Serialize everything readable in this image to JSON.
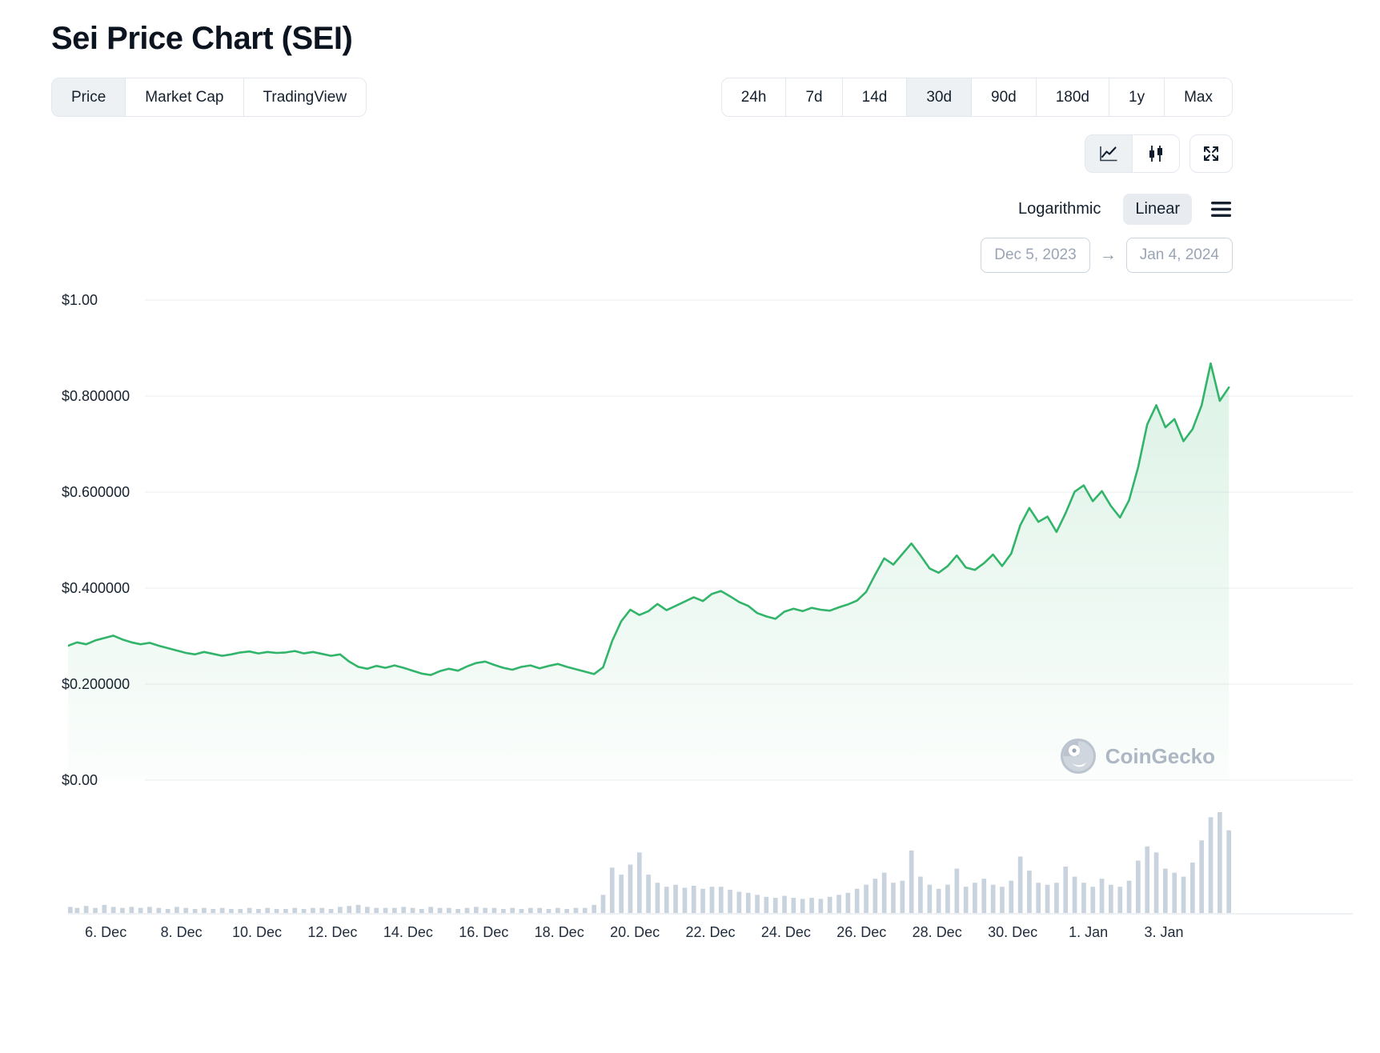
{
  "header": {
    "title": "Sei Price Chart (SEI)"
  },
  "toolbar": {
    "tabs": [
      {
        "label": "Price",
        "selected": true
      },
      {
        "label": "Market Cap",
        "selected": false
      },
      {
        "label": "TradingView",
        "selected": false
      }
    ],
    "ranges": [
      {
        "label": "24h",
        "selected": false
      },
      {
        "label": "7d",
        "selected": false
      },
      {
        "label": "14d",
        "selected": false
      },
      {
        "label": "30d",
        "selected": true
      },
      {
        "label": "90d",
        "selected": false
      },
      {
        "label": "180d",
        "selected": false
      },
      {
        "label": "1y",
        "selected": false
      },
      {
        "label": "Max",
        "selected": false
      }
    ]
  },
  "chart_controls": {
    "type_buttons": [
      {
        "name": "line-chart",
        "selected": true
      },
      {
        "name": "candlestick",
        "selected": false
      },
      {
        "name": "fullscreen",
        "selected": false
      }
    ],
    "scale_options": [
      {
        "label": "Logarithmic",
        "selected": false
      },
      {
        "label": "Linear",
        "selected": true
      }
    ],
    "date_range": {
      "start": "Dec 5, 2023",
      "arrow": "→",
      "end": "Jan 4, 2024"
    }
  },
  "watermark": {
    "label": "CoinGecko"
  },
  "chart_data": {
    "type": "area",
    "title": "Sei Price Chart (SEI)",
    "xlabel": "",
    "ylabel": "",
    "currency": "USD",
    "date_start": "Dec 5, 2023",
    "date_end": "Jan 4, 2024",
    "ylim": [
      0,
      1.0
    ],
    "grid": true,
    "legend_position": "none",
    "line_color": "#32b46a",
    "area_fill_top": "rgba(50,180,106,0.17)",
    "area_fill_bottom": "rgba(50,180,106,0.02)",
    "volume_color": "#c9d3de",
    "grid_color": "#e9edf1",
    "sample_interval_days": 0.24,
    "x_total_span_days": 34,
    "yticks": [
      {
        "label": "$1.00",
        "value": 1.0
      },
      {
        "label": "$0.800000",
        "value": 0.8
      },
      {
        "label": "$0.600000",
        "value": 0.6
      },
      {
        "label": "$0.400000",
        "value": 0.4
      },
      {
        "label": "$0.200000",
        "value": 0.2
      },
      {
        "label": "$0.00",
        "value": 0.0
      }
    ],
    "xticks": [
      {
        "label": "6. Dec",
        "day": 1
      },
      {
        "label": "8. Dec",
        "day": 3
      },
      {
        "label": "10. Dec",
        "day": 5
      },
      {
        "label": "12. Dec",
        "day": 7
      },
      {
        "label": "14. Dec",
        "day": 9
      },
      {
        "label": "16. Dec",
        "day": 11
      },
      {
        "label": "18. Dec",
        "day": 13
      },
      {
        "label": "20. Dec",
        "day": 15
      },
      {
        "label": "22. Dec",
        "day": 17
      },
      {
        "label": "24. Dec",
        "day": 19
      },
      {
        "label": "26. Dec",
        "day": 21
      },
      {
        "label": "28. Dec",
        "day": 23
      },
      {
        "label": "30. Dec",
        "day": 25
      },
      {
        "label": "1. Jan",
        "day": 27
      },
      {
        "label": "3. Jan",
        "day": 29
      }
    ],
    "prices": [
      0.28,
      0.287,
      0.283,
      0.291,
      0.296,
      0.301,
      0.293,
      0.287,
      0.283,
      0.286,
      0.28,
      0.275,
      0.27,
      0.265,
      0.262,
      0.267,
      0.263,
      0.259,
      0.262,
      0.266,
      0.268,
      0.264,
      0.267,
      0.265,
      0.266,
      0.269,
      0.264,
      0.267,
      0.263,
      0.259,
      0.262,
      0.247,
      0.236,
      0.232,
      0.238,
      0.234,
      0.239,
      0.234,
      0.228,
      0.222,
      0.219,
      0.227,
      0.232,
      0.228,
      0.237,
      0.244,
      0.247,
      0.24,
      0.234,
      0.23,
      0.236,
      0.239,
      0.233,
      0.238,
      0.242,
      0.236,
      0.231,
      0.226,
      0.221,
      0.235,
      0.29,
      0.331,
      0.355,
      0.344,
      0.352,
      0.367,
      0.354,
      0.363,
      0.372,
      0.381,
      0.373,
      0.388,
      0.394,
      0.383,
      0.371,
      0.363,
      0.348,
      0.341,
      0.336,
      0.351,
      0.357,
      0.352,
      0.359,
      0.355,
      0.353,
      0.36,
      0.366,
      0.374,
      0.392,
      0.428,
      0.462,
      0.449,
      0.471,
      0.493,
      0.468,
      0.441,
      0.432,
      0.446,
      0.468,
      0.443,
      0.438,
      0.452,
      0.47,
      0.446,
      0.472,
      0.531,
      0.567,
      0.538,
      0.549,
      0.517,
      0.556,
      0.601,
      0.614,
      0.581,
      0.602,
      0.571,
      0.547,
      0.583,
      0.652,
      0.741,
      0.781,
      0.735,
      0.752,
      0.706,
      0.731,
      0.781,
      0.868,
      0.79,
      0.818
    ],
    "volume_relative": [
      0.06,
      0.05,
      0.07,
      0.05,
      0.08,
      0.06,
      0.05,
      0.06,
      0.05,
      0.06,
      0.05,
      0.04,
      0.06,
      0.05,
      0.04,
      0.05,
      0.04,
      0.05,
      0.04,
      0.04,
      0.05,
      0.04,
      0.05,
      0.04,
      0.04,
      0.05,
      0.04,
      0.05,
      0.05,
      0.04,
      0.06,
      0.07,
      0.08,
      0.06,
      0.05,
      0.05,
      0.05,
      0.06,
      0.05,
      0.04,
      0.06,
      0.05,
      0.05,
      0.04,
      0.05,
      0.06,
      0.05,
      0.05,
      0.04,
      0.05,
      0.04,
      0.05,
      0.05,
      0.04,
      0.05,
      0.04,
      0.05,
      0.05,
      0.08,
      0.18,
      0.45,
      0.38,
      0.48,
      0.6,
      0.38,
      0.3,
      0.26,
      0.28,
      0.25,
      0.27,
      0.24,
      0.26,
      0.26,
      0.23,
      0.21,
      0.2,
      0.18,
      0.16,
      0.15,
      0.17,
      0.15,
      0.14,
      0.15,
      0.14,
      0.16,
      0.18,
      0.2,
      0.24,
      0.28,
      0.34,
      0.4,
      0.3,
      0.32,
      0.62,
      0.36,
      0.28,
      0.24,
      0.28,
      0.44,
      0.26,
      0.3,
      0.34,
      0.28,
      0.26,
      0.32,
      0.56,
      0.42,
      0.3,
      0.28,
      0.3,
      0.46,
      0.36,
      0.3,
      0.26,
      0.34,
      0.28,
      0.26,
      0.32,
      0.52,
      0.66,
      0.6,
      0.44,
      0.4,
      0.36,
      0.5,
      0.72,
      0.95,
      1.0,
      0.82
    ]
  }
}
